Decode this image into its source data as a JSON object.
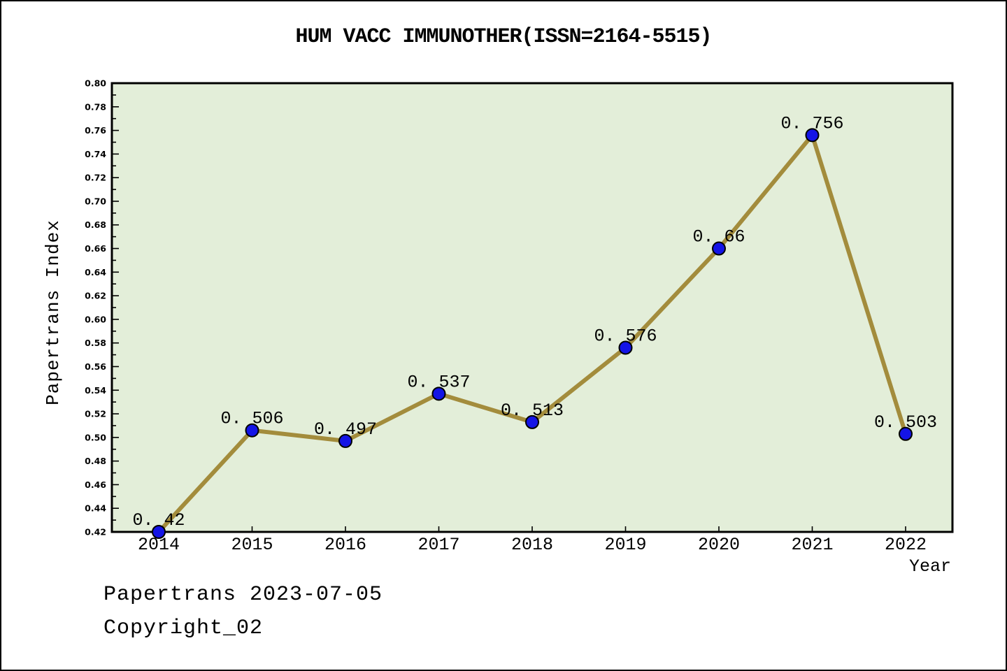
{
  "title": "HUM VACC IMMUNOTHER(ISSN=2164-5515)",
  "footer": {
    "line1": "Papertrans 2023-07-05",
    "line2": "Copyright_02"
  },
  "chart_data": {
    "type": "line",
    "title": "HUM VACC IMMUNOTHER(ISSN=2164-5515)",
    "xlabel": "Year",
    "ylabel": "Papertrans Index",
    "categories": [
      2014,
      2015,
      2016,
      2017,
      2018,
      2019,
      2020,
      2021,
      2022
    ],
    "values": [
      0.42,
      0.506,
      0.497,
      0.537,
      0.513,
      0.576,
      0.66,
      0.756,
      0.503
    ],
    "point_labels": [
      "0. 42",
      "0. 506",
      "0. 497",
      "0. 537",
      "0. 513",
      "0. 576",
      "0. 66",
      "0. 756",
      "0. 503"
    ],
    "ylim": [
      0.42,
      0.8
    ],
    "ytick_step": 0.02,
    "ytick_minor_step": 0.01,
    "ytick_labels": [
      "0.42",
      "0.44",
      "0.46",
      "0.48",
      "0.50",
      "0.52",
      "0.54",
      "0.56",
      "0.58",
      "0.60",
      "0.62",
      "0.64",
      "0.66",
      "0.68",
      "0.70",
      "0.72",
      "0.74",
      "0.76",
      "0.78",
      "0.80"
    ],
    "grid": false,
    "legend": null,
    "colors": {
      "line": "#a38c3c",
      "point_fill": "#1414e6",
      "point_edge": "#000000",
      "plot_bg": "#e3eed9",
      "axis": "#000000",
      "text": "#000000",
      "page_bg": "#ffffff"
    }
  }
}
